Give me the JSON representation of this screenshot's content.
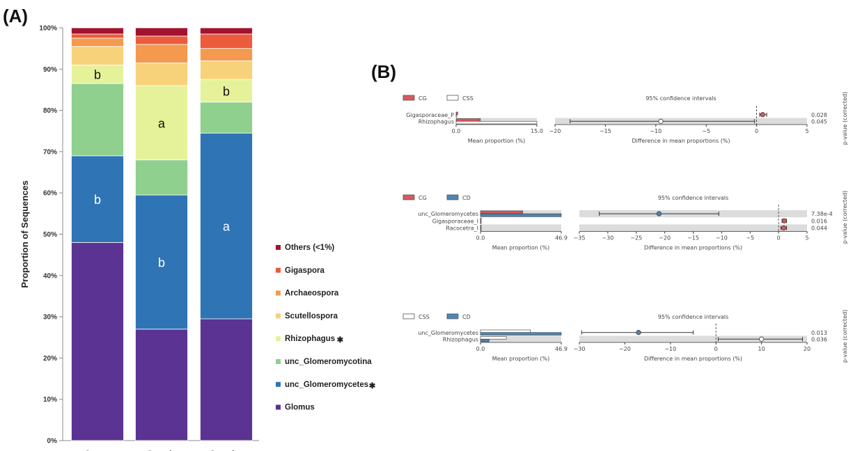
{
  "panel_a_label": "(A)",
  "panel_b_label": "(B)",
  "chart_data": [
    {
      "type": "bar",
      "stacked": true,
      "ylabel": "Proportion of Sequences",
      "ylim": [
        0,
        100
      ],
      "yticks": [
        "0%",
        "10%",
        "20%",
        "30%",
        "40%",
        "50%",
        "60%",
        "70%",
        "80%",
        "90%",
        "100%"
      ],
      "categories": [
        "Campo Graminoide",
        "Cerrado Stricto Sensu",
        "Cerradao"
      ],
      "category_lines": [
        [
          "Campo",
          "Graminoide"
        ],
        [
          "Cerrado",
          "Stricto Sensu"
        ],
        [
          "Cerradao"
        ]
      ],
      "series": [
        {
          "name": "Glomus",
          "color": "#5b3392",
          "values": [
            48,
            27,
            29.5
          ]
        },
        {
          "name": "unc_Glomeromycetes",
          "marker": "✱",
          "color": "#2f74b5",
          "values": [
            21,
            32.5,
            45
          ]
        },
        {
          "name": "unc_Glomeromycotina",
          "color": "#8fd08e",
          "values": [
            17.5,
            8.5,
            7.5
          ]
        },
        {
          "name": "Rhizophagus",
          "marker": "✱",
          "color": "#e6f29a",
          "values": [
            4.5,
            18,
            5.5
          ]
        },
        {
          "name": "Scutellospora",
          "color": "#f8d27a",
          "values": [
            4.5,
            5.5,
            4.5
          ]
        },
        {
          "name": "Archaeospora",
          "color": "#f49a4e",
          "values": [
            2,
            4.5,
            3
          ]
        },
        {
          "name": "Gigaspora",
          "color": "#ec5b3c",
          "values": [
            1,
            2,
            3.5
          ]
        },
        {
          "name": "Others (<1%)",
          "color": "#a3122f",
          "values": [
            1.5,
            2,
            1.5
          ]
        }
      ],
      "legend_order": [
        "Others (<1%)",
        "Gigaspora",
        "Archaeospora",
        "Scutellospora",
        "Rhizophagus",
        "unc_Glomeromycotina",
        "unc_Glomeromycetes",
        "Glomus"
      ],
      "legend_position": "right",
      "annotations": [
        {
          "category": 0,
          "series": "Glomus",
          "text": "",
          "color": "#ffffff"
        },
        {
          "category": 0,
          "series": "unc_Glomeromycetes",
          "text": "b",
          "color": "#ffffff"
        },
        {
          "category": 0,
          "series": "Rhizophagus",
          "text": "b",
          "color": "#111111"
        },
        {
          "category": 1,
          "series": "unc_Glomeromycetes",
          "text": "b",
          "color": "#ffffff"
        },
        {
          "category": 1,
          "series": "Rhizophagus",
          "text": "a",
          "color": "#111111"
        },
        {
          "category": 2,
          "series": "unc_Glomeromycetes",
          "text": "a",
          "color": "#ffffff"
        },
        {
          "category": 2,
          "series": "Rhizophagus",
          "text": "b",
          "color": "#111111"
        }
      ]
    },
    {
      "type": "bar",
      "subtype": "extended-error-bar",
      "legend": [
        {
          "name": "CG",
          "color": "#d9595c"
        },
        {
          "name": "CSS",
          "color": "#ffffff"
        }
      ],
      "ci_title": "95% confidence intervals",
      "left_xlabel": "Mean proportion (%)",
      "left_xlim": [
        0,
        15.0
      ],
      "left_xticks": [
        "0.0",
        "15.0"
      ],
      "right_xlabel": "Difference in mean proportions (%)",
      "right_xlim": [
        -20,
        5
      ],
      "right_xticks": [
        -20,
        -15,
        -10,
        -5,
        0,
        5
      ],
      "pvalue_label": "p-value (corrected)",
      "rows": [
        {
          "name": "Gigasporaceae",
          "label": "Gigasporaceae_P",
          "mean_a": 0.3,
          "mean_b": 0.0,
          "diff": 0.6,
          "ci": [
            0.3,
            1.0
          ],
          "p": "0.028",
          "point_color": "#d9595c"
        },
        {
          "name": "Rhizophagus",
          "label": "Rhizophagus",
          "mean_a": 4.5,
          "mean_b": 15.0,
          "diff": -9.5,
          "ci": [
            -18.5,
            -0.2
          ],
          "p": "0.045",
          "point_color": "#ffffff"
        }
      ]
    },
    {
      "type": "bar",
      "subtype": "extended-error-bar",
      "legend": [
        {
          "name": "CG",
          "color": "#d9595c"
        },
        {
          "name": "CD",
          "color": "#4e86b4"
        }
      ],
      "ci_title": "95% confidence intervals",
      "left_xlabel": "Mean proportion (%)",
      "left_xlim": [
        0,
        46.9
      ],
      "left_xticks": [
        "0.0",
        "46.9"
      ],
      "right_xlabel": "Difference in mean proportions (%)",
      "right_xlim": [
        -35,
        5
      ],
      "right_xticks": [
        -35,
        -30,
        -25,
        -20,
        -15,
        -10,
        -5,
        0,
        5
      ],
      "pvalue_label": "p-value (corrected)",
      "rows": [
        {
          "name": "unc_Glomeromycetes",
          "label": "unc_Glomeromycetes",
          "mean_a": 24.5,
          "mean_b": 46.9,
          "diff": -21.0,
          "ci": [
            -31.5,
            -10.5
          ],
          "p": "7.38e-4",
          "point_color": "#4e86b4"
        },
        {
          "name": "Gigasporaceae",
          "label": "Gigasporaceae_I",
          "mean_a": 0.4,
          "mean_b": 0.0,
          "diff": 1.0,
          "ci": [
            0.6,
            1.4
          ],
          "p": "0.016",
          "point_color": "#d9595c"
        },
        {
          "name": "Racocetra",
          "label": "Racocetra_I",
          "mean_a": 0.4,
          "mean_b": 0.0,
          "diff": 0.9,
          "ci": [
            0.4,
            1.4
          ],
          "p": "0.044",
          "point_color": "#d9595c"
        }
      ]
    },
    {
      "type": "bar",
      "subtype": "extended-error-bar",
      "legend": [
        {
          "name": "CSS",
          "color": "#ffffff"
        },
        {
          "name": "CD",
          "color": "#4e86b4"
        }
      ],
      "ci_title": "95% confidence intervals",
      "left_xlabel": "Mean proportion (%)",
      "left_xlim": [
        0,
        46.9
      ],
      "left_xticks": [
        "0.0",
        "46.9"
      ],
      "right_xlabel": "Difference in mean proportions (%)",
      "right_xlim": [
        -30,
        20
      ],
      "right_xticks": [
        -30,
        -20,
        -10,
        0,
        10,
        20
      ],
      "pvalue_label": "p-value (corrected)",
      "rows": [
        {
          "name": "unc_Glomeromycetes",
          "label": "unc_Glomeromycetes",
          "mean_a": 29.0,
          "mean_b": 46.9,
          "diff": -17.0,
          "ci": [
            -29.5,
            -5.0
          ],
          "p": "0.013",
          "point_color": "#4e86b4"
        },
        {
          "name": "Rhizophagus",
          "label": "Rhizophagus",
          "mean_a": 15.0,
          "mean_b": 5.0,
          "diff": 10.0,
          "ci": [
            0.5,
            19.0
          ],
          "p": "0.036",
          "point_color": "#ffffff"
        }
      ]
    }
  ]
}
